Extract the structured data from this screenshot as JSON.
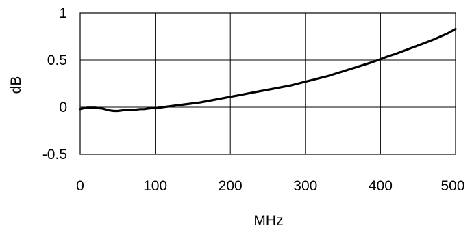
{
  "chart_data": {
    "type": "line",
    "title": "",
    "xlabel": "MHz",
    "ylabel": "dB",
    "xlim": [
      0,
      500
    ],
    "ylim": [
      -0.5,
      1
    ],
    "xticks": [
      0,
      100,
      200,
      300,
      400,
      500
    ],
    "yticks": [
      -0.5,
      0,
      0.5,
      1
    ],
    "xtick_labels": [
      "0",
      "100",
      "200",
      "300",
      "400",
      "500"
    ],
    "ytick_labels": [
      "-0.5",
      "0",
      "0.5",
      "1"
    ],
    "grid": true,
    "legend": "none",
    "line_color": "#000000",
    "series": [
      {
        "x": [
          0,
          5,
          10,
          15,
          20,
          25,
          30,
          35,
          40,
          45,
          50,
          55,
          60,
          65,
          70,
          75,
          80,
          85,
          90,
          95,
          100,
          110,
          120,
          130,
          140,
          150,
          160,
          170,
          180,
          190,
          200,
          210,
          220,
          230,
          240,
          250,
          260,
          270,
          280,
          290,
          300,
          310,
          320,
          330,
          340,
          350,
          360,
          370,
          380,
          390,
          400,
          410,
          420,
          430,
          440,
          450,
          460,
          470,
          480,
          490,
          500
        ],
        "y": [
          -0.02,
          -0.01,
          -0.005,
          -0.005,
          -0.005,
          -0.01,
          -0.015,
          -0.025,
          -0.035,
          -0.04,
          -0.04,
          -0.035,
          -0.03,
          -0.028,
          -0.03,
          -0.025,
          -0.02,
          -0.02,
          -0.015,
          -0.01,
          -0.01,
          0.0,
          0.01,
          0.02,
          0.03,
          0.04,
          0.05,
          0.065,
          0.08,
          0.095,
          0.11,
          0.125,
          0.14,
          0.155,
          0.17,
          0.185,
          0.2,
          0.215,
          0.23,
          0.25,
          0.27,
          0.29,
          0.31,
          0.33,
          0.355,
          0.38,
          0.405,
          0.43,
          0.455,
          0.48,
          0.51,
          0.54,
          0.565,
          0.595,
          0.625,
          0.655,
          0.685,
          0.715,
          0.75,
          0.785,
          0.83
        ]
      }
    ]
  }
}
